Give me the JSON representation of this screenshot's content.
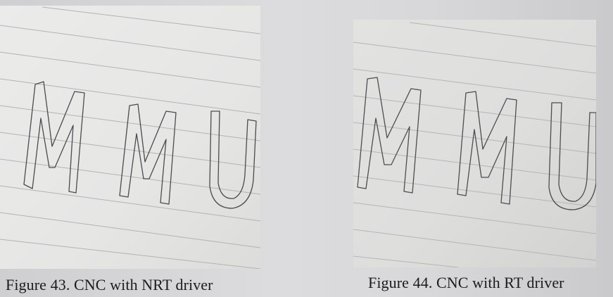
{
  "figures": [
    {
      "caption": "Figure 43. CNC with NRT driver",
      "letters": [
        "M",
        "M",
        "U"
      ]
    },
    {
      "caption": "Figure 44. CNC with RT driver",
      "letters": [
        "M",
        "M",
        "U"
      ]
    }
  ],
  "colors": {
    "paper_left": "#e7e7e6",
    "paper_right": "#dededd",
    "ruling": "#b5b5b6",
    "pencil": "#4a4a4f",
    "caption": "#1c1c1e"
  }
}
